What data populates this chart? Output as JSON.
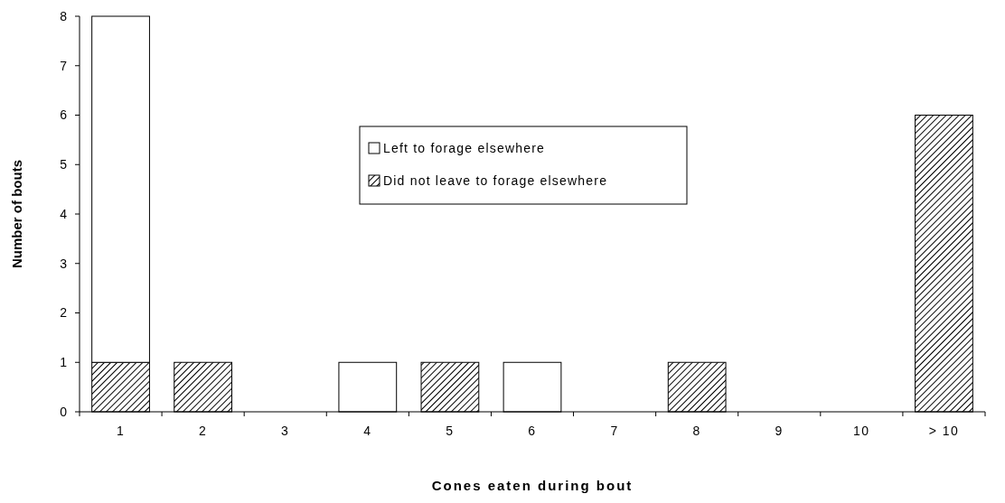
{
  "chart_data": {
    "type": "bar",
    "stacked": true,
    "xlabel": "Cones eaten during bout",
    "ylabel": "Number of bouts",
    "categories": [
      "1",
      "2",
      "3",
      "4",
      "5",
      "6",
      "7",
      "8",
      "9",
      "10",
      "> 10"
    ],
    "series": [
      {
        "name": "Did not leave to forage elsewhere",
        "color": "#000000",
        "values": [
          1,
          1,
          null,
          null,
          1,
          null,
          null,
          1,
          null,
          null,
          6
        ]
      },
      {
        "name": "Left to forage elsewhere",
        "color": "#ffffff",
        "values": [
          7,
          null,
          null,
          1,
          null,
          1,
          null,
          null,
          null,
          null,
          null
        ]
      }
    ],
    "ylim": [
      0,
      8
    ],
    "yticks": [
      0,
      1,
      2,
      3,
      4,
      5,
      6,
      7,
      8
    ],
    "legend": "top",
    "grid": false
  }
}
